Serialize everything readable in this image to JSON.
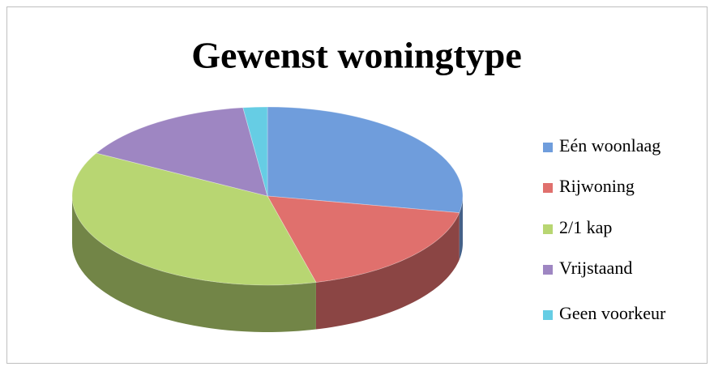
{
  "chart_data": {
    "type": "pie",
    "title": "Gewenst woningtype",
    "categories": [
      "Eén woonlaag",
      "Rijwoning",
      "2/1 kap",
      "Vrijstaand",
      "Geen voorkeur"
    ],
    "values": [
      28,
      18,
      37,
      15,
      2
    ],
    "colors": [
      "#6f9ddc",
      "#e0706d",
      "#b8d672",
      "#9e86c2",
      "#66cde4"
    ],
    "legend": "right"
  }
}
